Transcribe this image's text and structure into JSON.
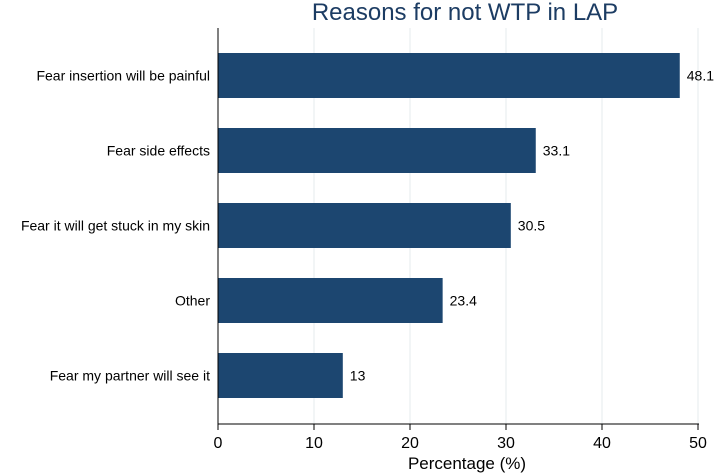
{
  "chart_data": {
    "type": "bar",
    "orientation": "horizontal",
    "title": "Reasons for not WTP in LAP",
    "xlabel": "Percentage (%)",
    "ylabel": "",
    "categories": [
      "Fear insertion will be painful",
      "Fear side effects",
      "Fear it will get stuck in my skin",
      "Other",
      "Fear my partner will see it"
    ],
    "values": [
      48.1,
      33.1,
      30.5,
      23.4,
      13
    ],
    "value_labels": [
      "48.1",
      "33.1",
      "30.5",
      "23.4",
      "13"
    ],
    "xlim": [
      0,
      50
    ],
    "xticks": [
      0,
      10,
      20,
      30,
      40,
      50
    ],
    "xtick_labels": [
      "0",
      "10",
      "20",
      "30",
      "40",
      "50"
    ],
    "grid": true,
    "legend": "none"
  },
  "colors": {
    "bar": "#1c4670",
    "title": "#1c3c63",
    "grid": "#e4ebee",
    "axis": "#000000"
  }
}
